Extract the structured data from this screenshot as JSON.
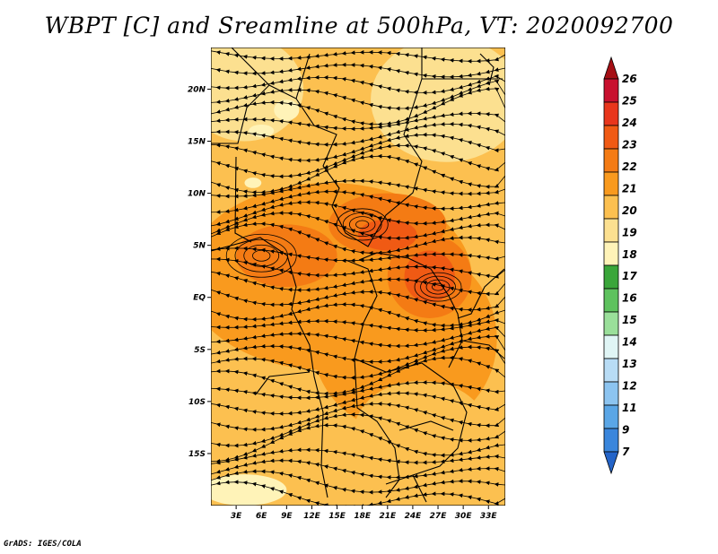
{
  "title": "WBPT [C] and Sreamline at 500hPa, VT: 2020092700",
  "credit": "GrADS: IGES/COLA",
  "map": {
    "lon_range": [
      0,
      35
    ],
    "lat_range": [
      -20,
      24
    ],
    "lon_ticks": [
      {
        "value": 3,
        "label": "3E"
      },
      {
        "value": 6,
        "label": "6E"
      },
      {
        "value": 9,
        "label": "9E"
      },
      {
        "value": 12,
        "label": "12E"
      },
      {
        "value": 15,
        "label": "15E"
      },
      {
        "value": 18,
        "label": "18E"
      },
      {
        "value": 21,
        "label": "21E"
      },
      {
        "value": 24,
        "label": "24E"
      },
      {
        "value": 27,
        "label": "27E"
      },
      {
        "value": 30,
        "label": "30E"
      },
      {
        "value": 33,
        "label": "33E"
      }
    ],
    "lat_ticks": [
      {
        "value": 20,
        "label": "20N"
      },
      {
        "value": 15,
        "label": "15N"
      },
      {
        "value": 10,
        "label": "10N"
      },
      {
        "value": 5,
        "label": "5N"
      },
      {
        "value": 0,
        "label": "EQ"
      },
      {
        "value": -5,
        "label": "5S"
      },
      {
        "value": -10,
        "label": "10S"
      },
      {
        "value": -15,
        "label": "15S"
      }
    ],
    "field_regions": [
      {
        "level": 19,
        "center": [
          28,
          19
        ],
        "radius_deg": [
          9,
          6
        ]
      },
      {
        "level": 19,
        "center": [
          4,
          20
        ],
        "radius_deg": [
          7,
          5
        ]
      },
      {
        "level": 21,
        "center": [
          14,
          2
        ],
        "radius_deg": [
          17,
          9
        ]
      },
      {
        "level": 21,
        "center": [
          23,
          -4
        ],
        "radius_deg": [
          11,
          9
        ]
      },
      {
        "level": 22,
        "center": [
          9,
          4
        ],
        "radius_deg": [
          6,
          3
        ]
      },
      {
        "level": 22,
        "center": [
          21,
          7
        ],
        "radius_deg": [
          7,
          3
        ]
      },
      {
        "level": 22,
        "center": [
          26,
          2
        ],
        "radius_deg": [
          5,
          4
        ]
      },
      {
        "level": 23,
        "center": [
          21,
          6
        ],
        "radius_deg": [
          3.5,
          1.5
        ]
      },
      {
        "level": 23,
        "center": [
          26,
          2
        ],
        "radius_deg": [
          3,
          2.5
        ]
      },
      {
        "level": 20,
        "center": [
          25,
          -13
        ],
        "radius_deg": [
          8,
          5
        ]
      },
      {
        "level": 18,
        "center": [
          4,
          -18.5
        ],
        "radius_deg": [
          5,
          1.5
        ]
      },
      {
        "level": 18,
        "center": [
          9,
          18
        ],
        "radius_deg": [
          1.5,
          1
        ]
      },
      {
        "level": 18,
        "center": [
          6,
          16
        ],
        "radius_deg": [
          1.5,
          0.6
        ]
      },
      {
        "level": 18,
        "center": [
          5,
          11
        ],
        "radius_deg": [
          1,
          0.5
        ]
      }
    ],
    "fill_level": 20
  },
  "colorbar": {
    "labels": [
      "26",
      "25",
      "24",
      "23",
      "22",
      "21",
      "20",
      "19",
      "18",
      "17",
      "16",
      "15",
      "14",
      "13",
      "12",
      "11",
      "9",
      "7"
    ],
    "colors": [
      "#a50f15",
      "#c8102e",
      "#e8361c",
      "#f05a14",
      "#f47b14",
      "#f99a1e",
      "#fcc050",
      "#fce090",
      "#fff3b8",
      "#3aa63a",
      "#5ec25e",
      "#9adf9a",
      "#e0f5f5",
      "#b8dcf5",
      "#8cc4f0",
      "#5aa6e6",
      "#3a86dc",
      "#2464c8"
    ]
  }
}
